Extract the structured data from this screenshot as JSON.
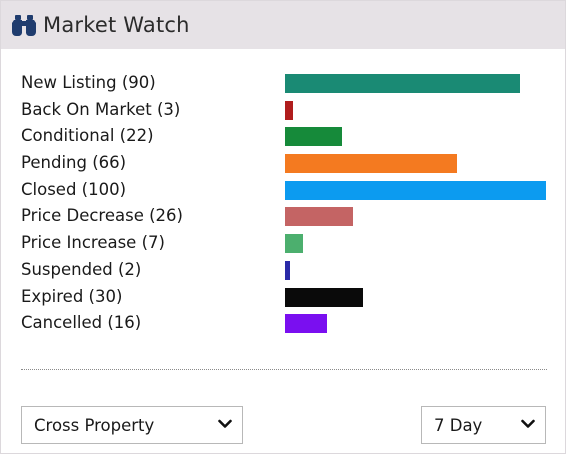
{
  "header": {
    "title": "Market Watch",
    "icon": "binoculars-icon"
  },
  "max_value": 100,
  "items": [
    {
      "label": "New Listing (90)",
      "value": 90,
      "color": "#1a8a74"
    },
    {
      "label": "Back On Market (3)",
      "value": 3,
      "color": "#b01d1d"
    },
    {
      "label": "Conditional (22)",
      "value": 22,
      "color": "#168a3a"
    },
    {
      "label": "Pending (66)",
      "value": 66,
      "color": "#f47a20"
    },
    {
      "label": "Closed (100)",
      "value": 100,
      "color": "#0c9bf0"
    },
    {
      "label": "Price Decrease (26)",
      "value": 26,
      "color": "#c46464"
    },
    {
      "label": "Price Increase (7)",
      "value": 7,
      "color": "#4caf6e"
    },
    {
      "label": "Suspended (2)",
      "value": 2,
      "color": "#2a2aa8"
    },
    {
      "label": "Expired (30)",
      "value": 30,
      "color": "#0a0a0a"
    },
    {
      "label": "Cancelled (16)",
      "value": 16,
      "color": "#7a0ff0"
    }
  ],
  "filters": {
    "property_type": "Cross Property",
    "period": "7 Day"
  }
}
